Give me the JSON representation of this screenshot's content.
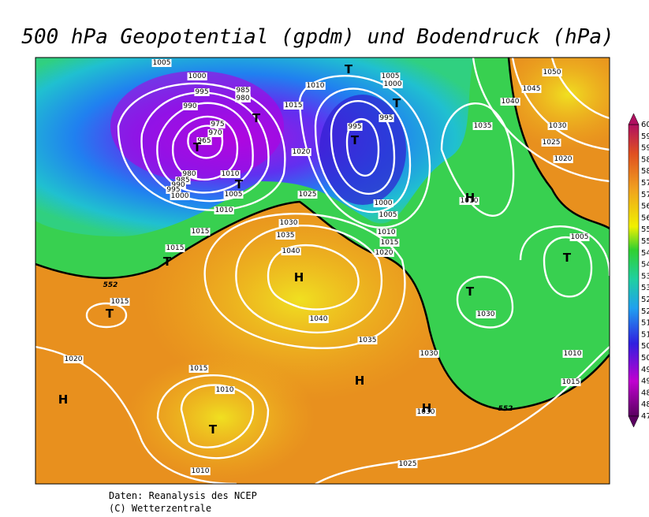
{
  "title": "500 hPa Geopotential (gpdm) und Bodendruck (hPa)",
  "isobar_labels": [
    "1005",
    "1000",
    "995",
    "990",
    "985",
    "980",
    "975",
    "970",
    "965",
    "980",
    "985",
    "990",
    "995",
    "1000",
    "1010",
    "1005",
    "1010",
    "1015",
    "1015",
    "1015",
    "1020",
    "1010",
    "1015",
    "1020",
    "1025",
    "995",
    "995",
    "1005",
    "1000",
    "1000",
    "1005",
    "1010",
    "1015",
    "1020",
    "1030",
    "1035",
    "1040",
    "1040",
    "1035",
    "1030",
    "1015",
    "1010",
    "1010",
    "1025",
    "1030",
    "1030",
    "1010",
    "1015",
    "1005",
    "1020",
    "1025",
    "1030",
    "1035",
    "1040",
    "1045",
    "1050",
    "1010"
  ],
  "height_labels": [
    "552",
    "552"
  ],
  "pressure_centers": [
    "T",
    "T",
    "T",
    "T",
    "T",
    "T",
    "T",
    "T",
    "T",
    "T",
    "T",
    "H",
    "H",
    "H",
    "H",
    "H"
  ],
  "colorbar_labels": [
    "60",
    "59",
    "59",
    "58",
    "58",
    "57",
    "57",
    "56",
    "56",
    "55",
    "55",
    "54",
    "54",
    "53",
    "53",
    "52",
    "52",
    "51",
    "51",
    "50",
    "50",
    "49",
    "49",
    "48",
    "48",
    "47"
  ],
  "footer": [
    "Daten: Reanalysis des NCEP",
    "(C) Wetterzentrale"
  ]
}
